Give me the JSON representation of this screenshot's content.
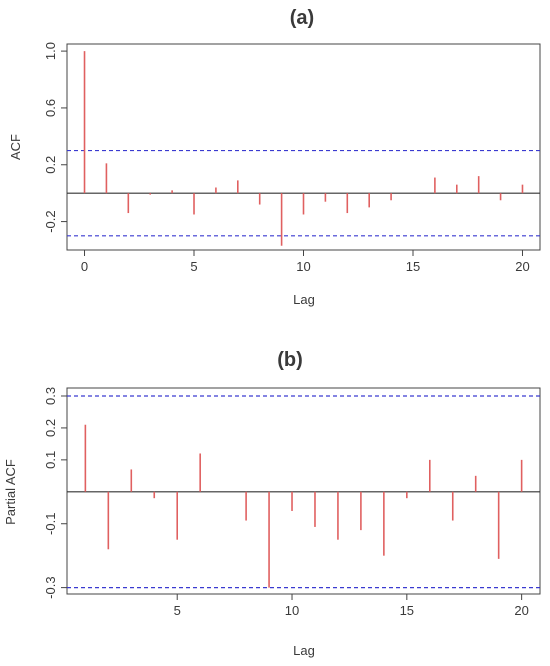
{
  "chart_data": [
    {
      "type": "bar",
      "panel_label": "(a)",
      "title": "",
      "xlabel": "Lag",
      "ylabel": "ACF",
      "xlim": [
        -0.8,
        20.8
      ],
      "ylim": [
        -0.4,
        1.05
      ],
      "x_ticks": [
        0,
        5,
        10,
        15,
        20
      ],
      "y_ticks": [
        -0.2,
        0.2,
        0.6,
        1.0
      ],
      "y_tick_labels": [
        "-0.2",
        "0.2",
        "0.6",
        "1.0"
      ],
      "zero_line": true,
      "confidence_bounds": [
        0.3,
        -0.3
      ],
      "bar_color": "#e06060",
      "bound_color": "#3a3ad0",
      "lags": [
        0,
        1,
        2,
        3,
        4,
        5,
        6,
        7,
        8,
        9,
        10,
        11,
        12,
        13,
        14,
        15,
        16,
        17,
        18,
        19,
        20
      ],
      "values": [
        1.0,
        0.21,
        -0.14,
        -0.01,
        0.02,
        -0.15,
        0.04,
        0.09,
        -0.08,
        -0.37,
        -0.15,
        -0.06,
        -0.14,
        -0.1,
        -0.05,
        0.0,
        0.11,
        0.06,
        0.12,
        -0.05,
        0.06
      ]
    },
    {
      "type": "bar",
      "panel_label": "(b)",
      "title": "",
      "xlabel": "Lag",
      "ylabel": "Partial ACF",
      "xlim": [
        0.2,
        20.8
      ],
      "ylim": [
        -0.32,
        0.325
      ],
      "x_ticks": [
        5,
        10,
        15,
        20
      ],
      "y_ticks": [
        -0.3,
        -0.1,
        0.1,
        0.2,
        0.3
      ],
      "y_tick_labels": [
        "-0.3",
        "-0.1",
        "0.1",
        "0.2",
        "0.3"
      ],
      "zero_line": true,
      "confidence_bounds": [
        0.3,
        -0.3
      ],
      "bar_color": "#e06060",
      "bound_color": "#3a3ad0",
      "lags": [
        1,
        2,
        3,
        4,
        5,
        6,
        7,
        8,
        9,
        10,
        11,
        12,
        13,
        14,
        15,
        16,
        17,
        18,
        19,
        20
      ],
      "values": [
        0.21,
        -0.18,
        0.07,
        -0.02,
        -0.15,
        0.12,
        0.0,
        -0.09,
        -0.3,
        -0.06,
        -0.11,
        -0.15,
        -0.12,
        -0.2,
        -0.02,
        0.1,
        -0.09,
        0.05,
        -0.21,
        0.1
      ]
    }
  ]
}
